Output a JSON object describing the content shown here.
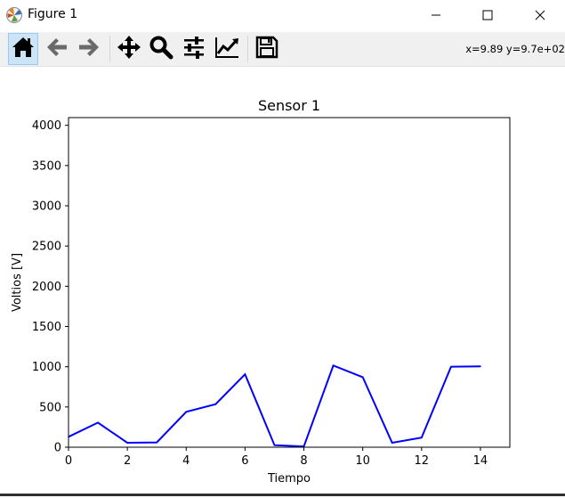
{
  "window": {
    "title": "Figure 1",
    "app_icon": "matplotlib-icon",
    "controls": [
      "minimize-icon",
      "maximize-icon",
      "close-icon"
    ]
  },
  "toolbar": {
    "buttons": [
      {
        "name": "home",
        "icon": "home-icon",
        "active": true
      },
      {
        "name": "back",
        "icon": "arrow-left-icon",
        "active": false
      },
      {
        "name": "forward",
        "icon": "arrow-right-icon",
        "active": false
      },
      {
        "name": "pan",
        "icon": "move-icon",
        "active": false
      },
      {
        "name": "zoom",
        "icon": "magnifier-icon",
        "active": false
      },
      {
        "name": "configure-subplots",
        "icon": "sliders-icon",
        "active": false
      },
      {
        "name": "edit-axis",
        "icon": "line-chart-icon",
        "active": false
      },
      {
        "name": "save",
        "icon": "floppy-disk-icon",
        "active": false
      }
    ],
    "coordinates": "x=9.89 y=9.7e+02"
  },
  "chart_data": {
    "type": "line",
    "title": "Sensor 1",
    "xlabel": "Tiempo",
    "ylabel": "Voltios [V]",
    "xlim": [
      0,
      15
    ],
    "ylim": [
      0,
      4096
    ],
    "xticks": [
      0,
      2,
      4,
      6,
      8,
      10,
      12,
      14
    ],
    "yticks": [
      0,
      500,
      1000,
      1500,
      2000,
      2500,
      3000,
      3500,
      4000
    ],
    "grid": false,
    "color": "#0000ff",
    "x": [
      0,
      1,
      2,
      3,
      4,
      5,
      6,
      7,
      8,
      9,
      10,
      11,
      12,
      13,
      14
    ],
    "y": [
      130,
      305,
      55,
      60,
      440,
      535,
      905,
      25,
      10,
      1015,
      870,
      55,
      120,
      1000,
      1005
    ]
  }
}
